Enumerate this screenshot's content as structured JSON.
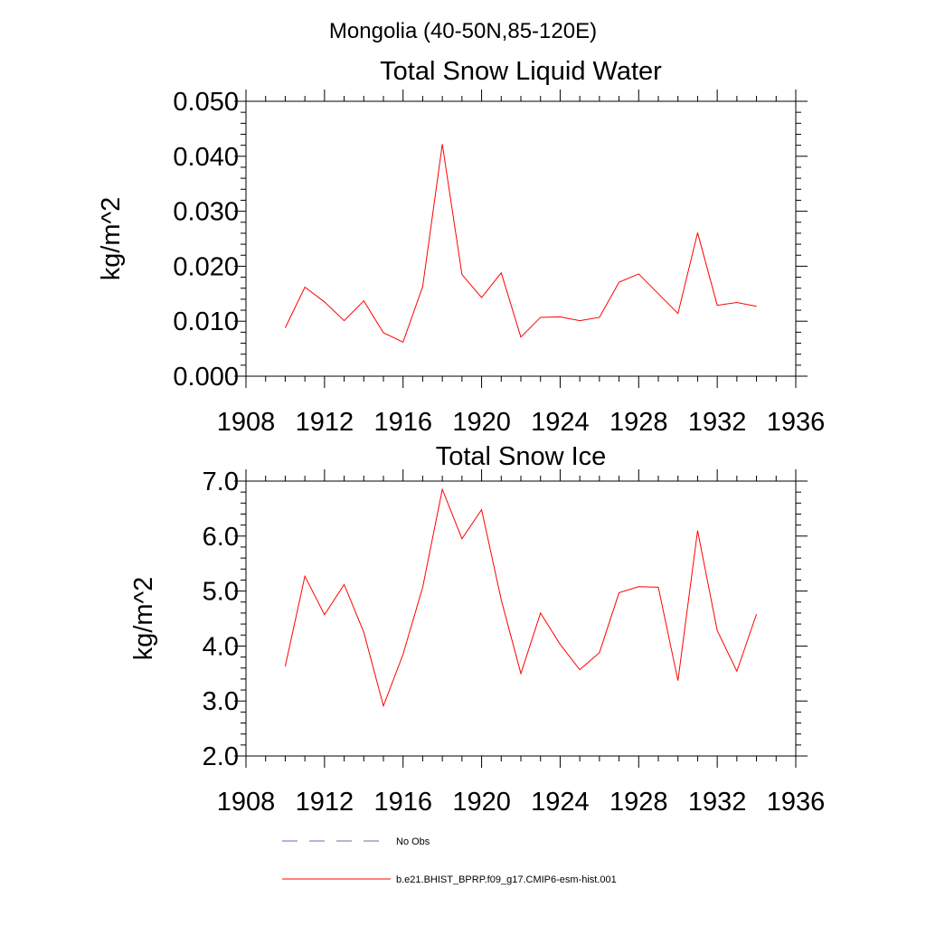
{
  "page_title": "Mongolia (40-50N,85-120E)",
  "chart_data": [
    {
      "type": "line",
      "title": "Total Snow Liquid Water",
      "ylabel": "kg/m^2",
      "xlabel": "",
      "xlim": [
        1908,
        1936
      ],
      "ylim": [
        0.0,
        0.05
      ],
      "x_ticks": [
        "1908",
        "1912",
        "1916",
        "1920",
        "1924",
        "1928",
        "1932",
        "1936"
      ],
      "y_ticks": [
        "0.000",
        "0.010",
        "0.020",
        "0.030",
        "0.040",
        "0.050"
      ],
      "grid": false,
      "series": [
        {
          "name": "b.e21.BHIST_BPRP.f09_g17.CMIP6-esm-hist.001",
          "color": "#ff0000",
          "x": [
            1910,
            1911,
            1912,
            1913,
            1914,
            1915,
            1916,
            1917,
            1918,
            1919,
            1920,
            1921,
            1922,
            1923,
            1924,
            1925,
            1926,
            1927,
            1928,
            1929,
            1930,
            1931,
            1932,
            1933,
            1934
          ],
          "values": [
            0.0088,
            0.0162,
            0.0135,
            0.0101,
            0.0137,
            0.0079,
            0.0062,
            0.0163,
            0.0422,
            0.0185,
            0.0143,
            0.0188,
            0.0071,
            0.0107,
            0.0108,
            0.0101,
            0.0107,
            0.0171,
            0.0186,
            0.015,
            0.0114,
            0.0261,
            0.0129,
            0.0134,
            0.0127
          ]
        }
      ]
    },
    {
      "type": "line",
      "title": "Total Snow Ice",
      "ylabel": "kg/m^2",
      "xlabel": "",
      "xlim": [
        1908,
        1936
      ],
      "ylim": [
        2.0,
        7.0
      ],
      "x_ticks": [
        "1908",
        "1912",
        "1916",
        "1920",
        "1924",
        "1928",
        "1932",
        "1936"
      ],
      "y_ticks": [
        "2.0",
        "3.0",
        "4.0",
        "5.0",
        "6.0",
        "7.0"
      ],
      "grid": false,
      "series": [
        {
          "name": "b.e21.BHIST_BPRP.f09_g17.CMIP6-esm-hist.001",
          "color": "#ff0000",
          "x": [
            1910,
            1911,
            1912,
            1913,
            1914,
            1915,
            1916,
            1917,
            1918,
            1919,
            1920,
            1921,
            1922,
            1923,
            1924,
            1925,
            1926,
            1927,
            1928,
            1929,
            1930,
            1931,
            1932,
            1933,
            1934
          ],
          "values": [
            3.63,
            5.27,
            4.57,
            5.12,
            4.25,
            2.91,
            3.85,
            5.07,
            6.85,
            5.95,
            6.48,
            4.84,
            3.5,
            4.6,
            4.03,
            3.57,
            3.88,
            4.97,
            5.08,
            5.07,
            3.37,
            6.1,
            4.28,
            3.54,
            4.58
          ]
        }
      ]
    }
  ],
  "legend": {
    "placement": "bottom",
    "items": [
      {
        "label": "No Obs",
        "style": "dashed",
        "color": "#6a6ab0"
      },
      {
        "label": "b.e21.BHIST_BPRP.f09_g17.CMIP6-esm-hist.001",
        "style": "solid",
        "color": "#ff0000"
      }
    ]
  }
}
